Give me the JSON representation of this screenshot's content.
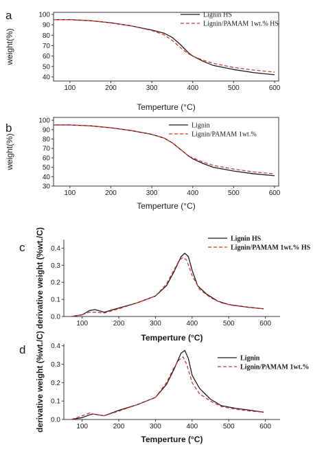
{
  "chart_data": [
    {
      "panel": "a",
      "type": "line",
      "xlabel": "Temperture (°C)",
      "ylabel": "weight(%)",
      "xlim": [
        60,
        610
      ],
      "ylim": [
        36,
        102
      ],
      "xticks": [
        100,
        200,
        300,
        400,
        500,
        600
      ],
      "yticks": [
        40,
        50,
        60,
        70,
        80,
        90,
        100
      ],
      "legend": "top-right",
      "series": [
        {
          "name": "Lignin HS",
          "color": "#1a1a1a",
          "dash": "solid",
          "x": [
            60,
            100,
            150,
            200,
            250,
            300,
            330,
            350,
            370,
            390,
            400,
            425,
            450,
            500,
            550,
            600
          ],
          "y": [
            95,
            95,
            94,
            92,
            89,
            85,
            82,
            78,
            71,
            63,
            60,
            55,
            51,
            47,
            44,
            42
          ]
        },
        {
          "name": "Lignin/PAMAM 1wt.% HS",
          "color": "#e0302e",
          "dash": "dashed",
          "x": [
            60,
            100,
            150,
            200,
            250,
            300,
            330,
            350,
            370,
            390,
            400,
            425,
            450,
            500,
            550,
            600
          ],
          "y": [
            95,
            95,
            94,
            92,
            89,
            84.5,
            80.5,
            75,
            68,
            62,
            60,
            56,
            53,
            49,
            46.5,
            44.5
          ]
        }
      ]
    },
    {
      "panel": "b",
      "type": "line",
      "xlabel": "Temperture (°C)",
      "ylabel": "weight(%)",
      "xlim": [
        60,
        610
      ],
      "ylim": [
        30,
        103
      ],
      "xticks": [
        100,
        200,
        300,
        400,
        500,
        600
      ],
      "yticks": [
        30,
        40,
        50,
        60,
        70,
        80,
        90,
        100
      ],
      "legend": "top-right",
      "series": [
        {
          "name": "Lignin",
          "color": "#1a1a1a",
          "dash": "solid",
          "x": [
            60,
            100,
            150,
            200,
            250,
            300,
            330,
            350,
            370,
            390,
            400,
            425,
            450,
            500,
            550,
            600
          ],
          "y": [
            95,
            95,
            94,
            92,
            89,
            85,
            81,
            76,
            69,
            62,
            59,
            54,
            50,
            46,
            43,
            41
          ]
        },
        {
          "name": "Lignin/PAMAM 1wt.%",
          "color": "#e0302e",
          "dash": "dashed",
          "x": [
            60,
            100,
            150,
            200,
            250,
            300,
            330,
            350,
            370,
            390,
            400,
            425,
            450,
            500,
            550,
            600
          ],
          "y": [
            95,
            95,
            94,
            92,
            89,
            85,
            81,
            76,
            69,
            62,
            60,
            55.5,
            52,
            48,
            45,
            43
          ]
        }
      ]
    },
    {
      "panel": "c",
      "type": "line",
      "xlabel": "Temperture (°C)",
      "ylabel": "derivative weight (%wt./C)",
      "xlim": [
        50,
        640
      ],
      "ylim": [
        0,
        0.45
      ],
      "xticks": [
        100,
        200,
        300,
        400,
        500,
        600
      ],
      "yticks": [
        0.0,
        0.1,
        0.2,
        0.3,
        0.4
      ],
      "legend": "top-right",
      "series": [
        {
          "name": "Lignin HS",
          "color": "#1a1a1a",
          "dash": "solid",
          "x": [
            70,
            100,
            120,
            135,
            160,
            200,
            250,
            300,
            330,
            350,
            370,
            380,
            390,
            400,
            415,
            440,
            470,
            500,
            550,
            595
          ],
          "y": [
            0.0,
            0.01,
            0.035,
            0.04,
            0.025,
            0.05,
            0.08,
            0.12,
            0.18,
            0.26,
            0.35,
            0.37,
            0.35,
            0.27,
            0.18,
            0.13,
            0.09,
            0.07,
            0.055,
            0.045
          ]
        },
        {
          "name": "Lignin/PAMAM 1wt.% HS",
          "color": "#e0302e",
          "dash": "dashed",
          "x": [
            70,
            100,
            120,
            135,
            160,
            200,
            250,
            300,
            330,
            350,
            365,
            375,
            385,
            400,
            420,
            450,
            480,
            510,
            550,
            595
          ],
          "y": [
            0.0,
            0.01,
            0.025,
            0.025,
            0.02,
            0.045,
            0.08,
            0.12,
            0.19,
            0.27,
            0.33,
            0.345,
            0.33,
            0.24,
            0.16,
            0.11,
            0.08,
            0.065,
            0.055,
            0.045
          ]
        }
      ]
    },
    {
      "panel": "d",
      "type": "line",
      "xlabel": "Temperture (°C)",
      "ylabel": "derivative weight (%wt./C)",
      "xlim": [
        50,
        640
      ],
      "ylim": [
        0,
        0.41
      ],
      "xticks": [
        100,
        200,
        300,
        400,
        500,
        600
      ],
      "yticks": [
        0.0,
        0.1,
        0.2,
        0.3,
        0.4
      ],
      "legend": "top-right",
      "series": [
        {
          "name": "Lignin",
          "color": "#1a1a1a",
          "dash": "solid",
          "x": [
            70,
            100,
            120,
            130,
            160,
            200,
            250,
            300,
            330,
            350,
            370,
            380,
            390,
            400,
            420,
            450,
            480,
            520,
            560,
            595
          ],
          "y": [
            0.0,
            0.01,
            0.025,
            0.03,
            0.02,
            0.05,
            0.08,
            0.12,
            0.19,
            0.27,
            0.36,
            0.375,
            0.33,
            0.24,
            0.17,
            0.11,
            0.075,
            0.06,
            0.05,
            0.04
          ]
        },
        {
          "name": "Lignin/PAMAM 1wt.%",
          "color": "#e0302e",
          "dash": "dashed",
          "x": [
            70,
            100,
            120,
            130,
            160,
            200,
            250,
            300,
            330,
            350,
            365,
            375,
            385,
            400,
            420,
            450,
            480,
            520,
            560,
            595
          ],
          "y": [
            0.0,
            0.02,
            0.035,
            0.03,
            0.02,
            0.045,
            0.08,
            0.12,
            0.2,
            0.28,
            0.325,
            0.34,
            0.3,
            0.2,
            0.14,
            0.1,
            0.07,
            0.055,
            0.045,
            0.04
          ]
        }
      ]
    }
  ]
}
